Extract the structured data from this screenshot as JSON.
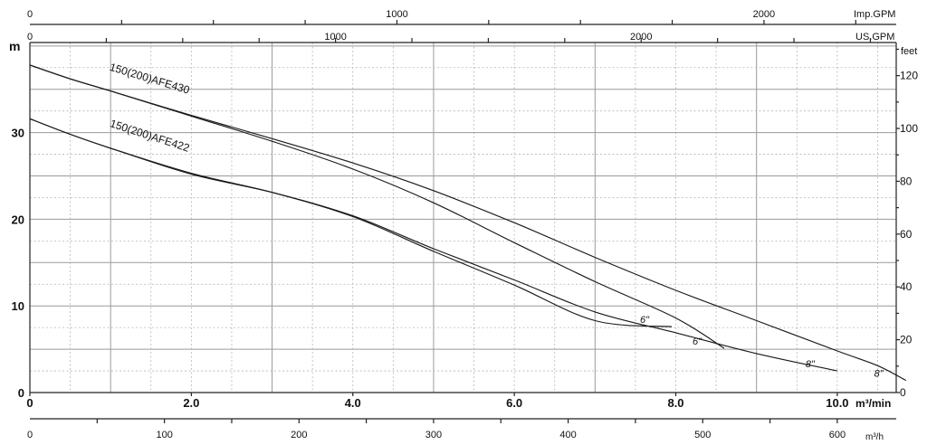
{
  "chart_data": {
    "type": "line",
    "x_unit": "m³/min",
    "y_unit_left": "m",
    "y_unit_right": "feet",
    "xlim": [
      0,
      10.73
    ],
    "ylim": [
      0,
      40.4
    ],
    "x_ticks": [
      {
        "value": 0,
        "label": "0"
      },
      {
        "value": 2,
        "label": "2.0"
      },
      {
        "value": 4,
        "label": "4.0"
      },
      {
        "value": 6,
        "label": "6.0"
      },
      {
        "value": 8,
        "label": "8.0"
      },
      {
        "value": 10,
        "label": "10.0"
      }
    ],
    "y_ticks_left": [
      {
        "value": 0,
        "label": "0"
      },
      {
        "value": 10,
        "label": "10"
      },
      {
        "value": 20,
        "label": "20"
      },
      {
        "value": 30,
        "label": "30"
      }
    ],
    "y_ticks_right": [
      {
        "value": 0,
        "label": "0"
      },
      {
        "value": 20,
        "label": "20"
      },
      {
        "value": 40,
        "label": "40"
      },
      {
        "value": 60,
        "label": "60"
      },
      {
        "value": 80,
        "label": "80"
      },
      {
        "value": 100,
        "label": "100"
      },
      {
        "value": 120,
        "label": "120"
      }
    ],
    "top_axis_imp": {
      "unit": "Imp.GPM",
      "ticks": [
        {
          "value": 0,
          "label": "0"
        },
        {
          "value": 1000,
          "label": "1000"
        },
        {
          "value": 2000,
          "label": "2000"
        }
      ]
    },
    "top_axis_us": {
      "unit": "US.GPM",
      "ticks": [
        {
          "value": 0,
          "label": "0"
        },
        {
          "value": 1000,
          "label": "1000"
        },
        {
          "value": 2000,
          "label": "2000"
        }
      ]
    },
    "bottom_axis_m3h": {
      "unit": "m³/h",
      "ticks": [
        {
          "value": 0,
          "label": "0"
        },
        {
          "value": 100,
          "label": "100"
        },
        {
          "value": 200,
          "label": "200"
        },
        {
          "value": 300,
          "label": "300"
        },
        {
          "value": 400,
          "label": "400"
        },
        {
          "value": 500,
          "label": "500"
        },
        {
          "value": 600,
          "label": "600"
        }
      ]
    },
    "series": [
      {
        "name": "150(200)AFE430",
        "end_label": "8\"",
        "x": [
          0,
          0.5,
          1.0,
          2.0,
          3.0,
          4.0,
          5.0,
          6.0,
          7.0,
          8.0,
          9.0,
          10.0,
          10.5,
          10.85
        ],
        "y": [
          37.8,
          36.2,
          34.8,
          32.0,
          29.3,
          26.5,
          23.3,
          19.6,
          15.6,
          11.8,
          8.3,
          4.8,
          3.1,
          1.4
        ]
      },
      {
        "name": "",
        "end_label": "6\"",
        "x": [
          0,
          0.5,
          1.0,
          2.0,
          3.0,
          4.0,
          5.0,
          6.0,
          7.0,
          8.0,
          8.6
        ],
        "y": [
          37.8,
          36.2,
          34.8,
          31.9,
          29.0,
          25.8,
          21.9,
          17.3,
          12.8,
          8.6,
          5.1
        ]
      },
      {
        "name": "150(200)AFE422",
        "end_label": "8\"",
        "x": [
          0,
          0.5,
          1.0,
          2.0,
          3.0,
          4.0,
          5.0,
          6.0,
          7.0,
          8.0,
          9.0,
          10.0
        ],
        "y": [
          31.6,
          29.8,
          28.2,
          25.2,
          23.1,
          20.4,
          16.6,
          13.0,
          9.3,
          6.9,
          4.5,
          2.5
        ]
      },
      {
        "name": "",
        "end_label": "6\"",
        "x": [
          0,
          0.5,
          1.0,
          2.0,
          3.0,
          4.0,
          5.0,
          6.0,
          7.0,
          7.95
        ],
        "y": [
          31.6,
          29.8,
          28.2,
          25.3,
          23.1,
          20.3,
          16.3,
          12.4,
          8.3,
          7.6
        ]
      }
    ],
    "grid": true
  }
}
